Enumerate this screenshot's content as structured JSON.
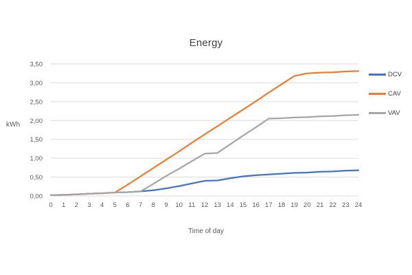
{
  "chart_data": {
    "type": "line",
    "title": "Energy",
    "xlabel": "Time of day",
    "ylabel": "kWh",
    "xlim": [
      0,
      24
    ],
    "ylim": [
      0,
      3.5
    ],
    "grid": true,
    "legend_position": "right",
    "x": [
      0,
      1,
      2,
      3,
      4,
      5,
      6,
      7,
      8,
      9,
      10,
      11,
      12,
      13,
      14,
      15,
      16,
      17,
      18,
      19,
      20,
      21,
      22,
      23,
      24
    ],
    "x_tick_labels": [
      "0",
      "1",
      "2",
      "3",
      "4",
      "5",
      "6",
      "7",
      "8",
      "9",
      "10",
      "11",
      "12",
      "13",
      "14",
      "15",
      "16",
      "17",
      "18",
      "19",
      "20",
      "21",
      "22",
      "23",
      "24"
    ],
    "y_ticks": {
      "values": [
        0,
        0.5,
        1.0,
        1.5,
        2.0,
        2.5,
        3.0,
        3.5
      ],
      "labels": [
        "0,00",
        "0,50",
        "1,00",
        "1,50",
        "2,00",
        "2,50",
        "3,00",
        "3,50"
      ]
    },
    "series": [
      {
        "name": "DCV",
        "color": "#4472C4",
        "values": [
          0.02,
          0.03,
          0.04,
          0.06,
          0.07,
          0.09,
          0.1,
          0.12,
          0.15,
          0.2,
          0.26,
          0.33,
          0.4,
          0.41,
          0.47,
          0.52,
          0.55,
          0.57,
          0.59,
          0.61,
          0.62,
          0.64,
          0.65,
          0.67,
          0.68
        ]
      },
      {
        "name": "CAV",
        "color": "#ED7D31",
        "values": [
          0.02,
          0.03,
          0.04,
          0.06,
          0.07,
          0.09,
          0.3,
          0.52,
          0.74,
          0.96,
          1.18,
          1.41,
          1.63,
          1.85,
          2.07,
          2.29,
          2.51,
          2.74,
          2.96,
          3.18,
          3.25,
          3.27,
          3.28,
          3.3,
          3.31
        ]
      },
      {
        "name": "VAV",
        "color": "#A5A5A5",
        "values": [
          0.02,
          0.03,
          0.04,
          0.06,
          0.07,
          0.09,
          0.1,
          0.12,
          0.32,
          0.53,
          0.72,
          0.92,
          1.12,
          1.14,
          1.37,
          1.6,
          1.82,
          2.05,
          2.06,
          2.08,
          2.09,
          2.11,
          2.12,
          2.14,
          2.15
        ]
      }
    ],
    "colors": {
      "gridline": "#D9D9D9",
      "title_text": "#404040",
      "tick_text": "#595959"
    }
  }
}
